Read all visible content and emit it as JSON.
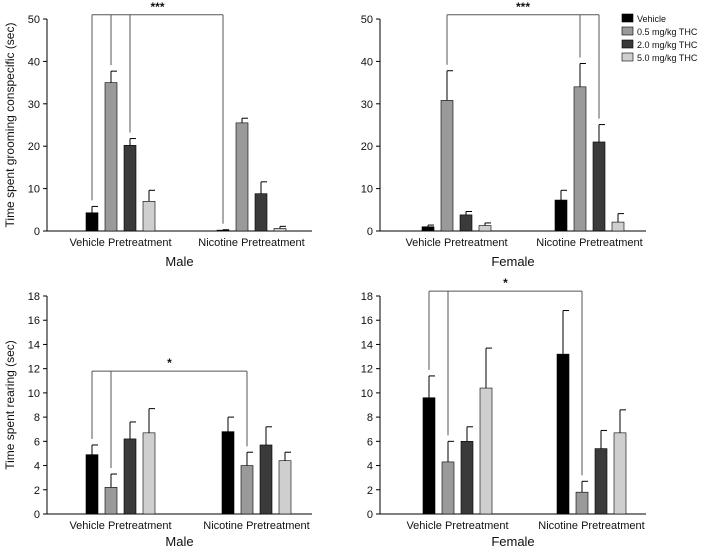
{
  "legend": {
    "placement": "top-right",
    "items": [
      {
        "label": "Vehicle",
        "color": "#000000"
      },
      {
        "label": "0.5 mg/kg THC",
        "color": "#9a9a9a"
      },
      {
        "label": "2.0 mg/kg THC",
        "color": "#3a3a3a"
      },
      {
        "label": "5.0 mg/kg THC",
        "color": "#cfcfcf"
      }
    ]
  },
  "chart_data": [
    {
      "type": "bar",
      "panel": "top-left",
      "title": "",
      "xlabel": "Male",
      "ylabel": "Time spent grooming conspecific (sec)",
      "ylim": [
        0,
        50
      ],
      "yticks": [
        0,
        10,
        20,
        30,
        40,
        50
      ],
      "grid": false,
      "categories": [
        "Vehicle Pretreatment",
        "Nicotine Pretreatment"
      ],
      "series": [
        {
          "name": "Vehicle",
          "values": [
            4.3,
            0.2
          ],
          "errors": [
            1.5,
            0.1
          ]
        },
        {
          "name": "0.5 mg/kg THC",
          "values": [
            35.0,
            25.5
          ],
          "errors": [
            2.7,
            1.1
          ]
        },
        {
          "name": "2.0 mg/kg THC",
          "values": [
            20.2,
            8.8
          ],
          "errors": [
            1.6,
            2.8
          ]
        },
        {
          "name": "5.0 mg/kg THC",
          "values": [
            7.0,
            0.6
          ],
          "errors": [
            2.6,
            0.5
          ]
        }
      ],
      "annotations": [
        {
          "text": "***",
          "from": [
            0,
            0
          ],
          "to": [
            1,
            0
          ],
          "extra_drops": [
            [
              0,
              1
            ],
            [
              0,
              2
            ]
          ],
          "y": 51
        }
      ]
    },
    {
      "type": "bar",
      "panel": "top-right",
      "title": "",
      "xlabel": "Female",
      "ylabel": "",
      "ylim": [
        0,
        50
      ],
      "yticks": [
        0,
        10,
        20,
        30,
        40,
        50
      ],
      "grid": false,
      "categories": [
        "Vehicle Pretreatment",
        "Nicotine Pretreatment"
      ],
      "series": [
        {
          "name": "Vehicle",
          "values": [
            1.0,
            7.3
          ],
          "errors": [
            0.4,
            2.3
          ]
        },
        {
          "name": "0.5 mg/kg THC",
          "values": [
            30.8,
            34.0
          ],
          "errors": [
            7.0,
            5.5
          ]
        },
        {
          "name": "2.0 mg/kg THC",
          "values": [
            3.8,
            21.0
          ],
          "errors": [
            0.8,
            4.1
          ]
        },
        {
          "name": "5.0 mg/kg THC",
          "values": [
            1.3,
            2.1
          ],
          "errors": [
            0.6,
            2.0
          ]
        }
      ],
      "annotations": [
        {
          "text": "***",
          "from": [
            0,
            1
          ],
          "to": [
            1,
            2
          ],
          "extra_drops": [
            [
              1,
              1
            ]
          ],
          "y": 51
        }
      ]
    },
    {
      "type": "bar",
      "panel": "bottom-left",
      "title": "",
      "xlabel": "Male",
      "ylabel": "Time spent rearing (sec)",
      "ylim": [
        0,
        18
      ],
      "yticks": [
        0,
        2,
        4,
        6,
        8,
        10,
        12,
        14,
        16,
        18
      ],
      "grid": false,
      "categories": [
        "Vehicle Pretreatment",
        "Nicotine Pretreatment"
      ],
      "series": [
        {
          "name": "Vehicle",
          "values": [
            4.9,
            6.8
          ],
          "errors": [
            0.8,
            1.2
          ]
        },
        {
          "name": "0.5 mg/kg THC",
          "values": [
            2.2,
            4.0
          ],
          "errors": [
            1.1,
            1.1
          ]
        },
        {
          "name": "2.0 mg/kg THC",
          "values": [
            6.2,
            5.7
          ],
          "errors": [
            1.4,
            1.5
          ]
        },
        {
          "name": "5.0 mg/kg THC",
          "values": [
            6.7,
            4.4
          ],
          "errors": [
            2.0,
            0.7
          ]
        }
      ],
      "annotations": [
        {
          "text": "*",
          "from": [
            0,
            0
          ],
          "to": [
            1,
            1
          ],
          "extra_drops": [
            [
              0,
              1
            ]
          ],
          "y": 11.8
        }
      ]
    },
    {
      "type": "bar",
      "panel": "bottom-right",
      "title": "",
      "xlabel": "Female",
      "ylabel": "",
      "ylim": [
        0,
        18
      ],
      "yticks": [
        0,
        2,
        4,
        6,
        8,
        10,
        12,
        14,
        16,
        18
      ],
      "grid": false,
      "categories": [
        "Vehicle Pretreatment",
        "Nicotine Pretreatment"
      ],
      "series": [
        {
          "name": "Vehicle",
          "values": [
            9.6,
            13.2
          ],
          "errors": [
            1.8,
            3.6
          ]
        },
        {
          "name": "0.5 mg/kg THC",
          "values": [
            4.3,
            1.8
          ],
          "errors": [
            1.7,
            0.9
          ]
        },
        {
          "name": "2.0 mg/kg THC",
          "values": [
            6.0,
            5.4
          ],
          "errors": [
            1.2,
            1.5
          ]
        },
        {
          "name": "5.0 mg/kg THC",
          "values": [
            10.4,
            6.7
          ],
          "errors": [
            3.3,
            1.9
          ]
        }
      ],
      "annotations": [
        {
          "text": "*",
          "from": [
            0,
            0
          ],
          "to": [
            1,
            1
          ],
          "extra_drops": [
            [
              0,
              1
            ]
          ],
          "y": 18.4
        }
      ]
    }
  ]
}
